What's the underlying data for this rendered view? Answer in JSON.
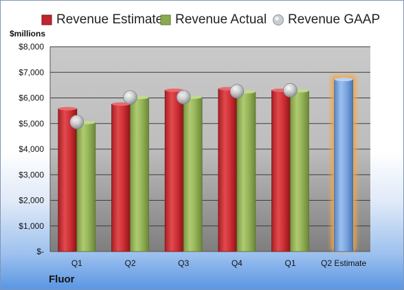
{
  "chart_data": {
    "type": "bar",
    "ylabel": "$millions",
    "company": "Fluor",
    "categories": [
      "Q1",
      "Q2",
      "Q3",
      "Q4",
      "Q1",
      "Q2 Estimate"
    ],
    "ylim": [
      0,
      8000
    ],
    "yticks": [
      0,
      1000,
      2000,
      3000,
      4000,
      5000,
      6000,
      7000,
      8000
    ],
    "ytick_labels": [
      "$-",
      "$1,000",
      "$2,000",
      "$3,000",
      "$4,000",
      "$5,000",
      "$6,000",
      "$7,000",
      "$8,000"
    ],
    "grid": true,
    "legend_position": "top",
    "series": [
      {
        "name": "Revenue Estimate",
        "kind": "bar",
        "color": "#c0262b",
        "values": [
          5580,
          5760,
          6300,
          6360,
          6300,
          6720
        ]
      },
      {
        "name": "Revenue Actual",
        "kind": "bar",
        "color": "#8caa4e",
        "values": [
          5040,
          6020,
          6030,
          6240,
          6280,
          null
        ]
      },
      {
        "name": "Revenue GAAP",
        "kind": "marker",
        "color": "#c4c8cc",
        "values": [
          5060,
          6020,
          6030,
          6260,
          6300,
          null
        ]
      }
    ],
    "highlight": {
      "category_index": 5,
      "color": "#6f9fd8",
      "glow_color": "#f5a742"
    }
  }
}
